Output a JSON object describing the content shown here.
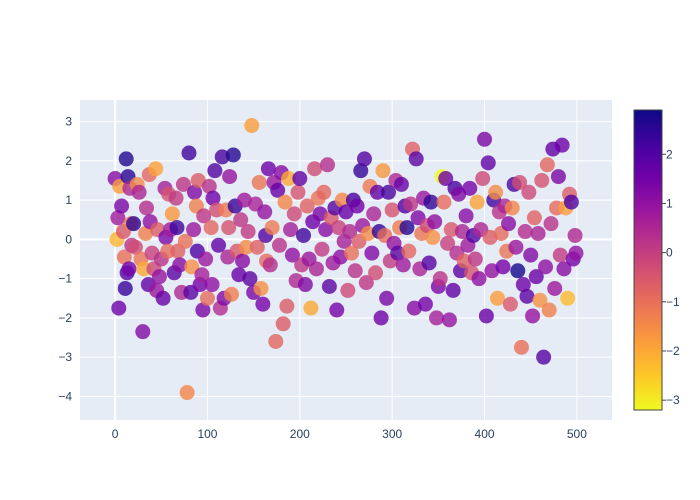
{
  "chart_data": {
    "type": "scatter",
    "title": "",
    "xlabel": "",
    "ylabel": "",
    "xlim": [
      -38,
      538
    ],
    "ylim": [
      -4.6,
      3.55
    ],
    "x_ticks": [
      0,
      100,
      200,
      300,
      400,
      500
    ],
    "y_ticks": [
      -4,
      -3,
      -2,
      -1,
      0,
      1,
      2,
      3
    ],
    "grid": true,
    "plot_background": "#e5ecf6",
    "colorscale": "Plasma (reversed)",
    "colorbar": {
      "range": [
        -3.2,
        2.9
      ],
      "ticks": [
        -3,
        -2,
        -1,
        0,
        1,
        2
      ],
      "placement": "right"
    },
    "marker_opacity": 0.8,
    "n_points": 500,
    "points": [
      {
        "x": 0,
        "y": 1.55,
        "c": 1.2
      },
      {
        "x": 2,
        "y": 0.0,
        "c": -2.2
      },
      {
        "x": 3,
        "y": 0.55,
        "c": 0.8
      },
      {
        "x": 4,
        "y": -1.75,
        "c": 1.6
      },
      {
        "x": 5,
        "y": 1.35,
        "c": -1.8
      },
      {
        "x": 7,
        "y": 0.85,
        "c": 1.4
      },
      {
        "x": 9,
        "y": 0.2,
        "c": -0.5
      },
      {
        "x": 10,
        "y": -0.45,
        "c": -1.0
      },
      {
        "x": 11,
        "y": -1.25,
        "c": 2.4
      },
      {
        "x": 12,
        "y": 2.05,
        "c": 2.7
      },
      {
        "x": 13,
        "y": -0.85,
        "c": 2.0
      },
      {
        "x": 14,
        "y": 1.6,
        "c": 2.6
      },
      {
        "x": 15,
        "y": -0.75,
        "c": 1.5
      },
      {
        "x": 16,
        "y": 1.3,
        "c": 0.5
      },
      {
        "x": 17,
        "y": 0.4,
        "c": -1.2
      },
      {
        "x": 18,
        "y": -0.15,
        "c": 0.2
      },
      {
        "x": 20,
        "y": 0.4,
        "c": 2.5
      },
      {
        "x": 22,
        "y": -0.2,
        "c": -0.3
      },
      {
        "x": 24,
        "y": 1.4,
        "c": -1.5
      },
      {
        "x": 26,
        "y": 1.2,
        "c": 0.6
      },
      {
        "x": 28,
        "y": -0.5,
        "c": -1.1
      },
      {
        "x": 30,
        "y": -2.35,
        "c": 1.3
      },
      {
        "x": 31,
        "y": -0.75,
        "c": -2.0
      },
      {
        "x": 33,
        "y": 0.15,
        "c": -1.3
      },
      {
        "x": 34,
        "y": 0.8,
        "c": 0.4
      },
      {
        "x": 36,
        "y": -1.15,
        "c": 1.8
      },
      {
        "x": 37,
        "y": 1.65,
        "c": -0.8
      },
      {
        "x": 38,
        "y": 0.45,
        "c": 1.1
      },
      {
        "x": 40,
        "y": -0.35,
        "c": 0.0
      },
      {
        "x": 42,
        "y": -0.75,
        "c": -0.2
      },
      {
        "x": 44,
        "y": 1.8,
        "c": -1.9
      },
      {
        "x": 45,
        "y": -1.3,
        "c": 0.9
      },
      {
        "x": 46,
        "y": 0.25,
        "c": -0.6
      },
      {
        "x": 48,
        "y": -0.95,
        "c": 1.0
      },
      {
        "x": 50,
        "y": -0.5,
        "c": 0.3
      },
      {
        "x": 52,
        "y": -1.5,
        "c": 1.7
      },
      {
        "x": 54,
        "y": 1.3,
        "c": 0.7
      },
      {
        "x": 55,
        "y": 0.05,
        "c": 1.4
      },
      {
        "x": 57,
        "y": -0.3,
        "c": -0.9
      },
      {
        "x": 58,
        "y": 1.15,
        "c": -0.4
      },
      {
        "x": 60,
        "y": 0.25,
        "c": 0.8
      },
      {
        "x": 62,
        "y": 0.65,
        "c": -1.7
      },
      {
        "x": 64,
        "y": -0.85,
        "c": 1.9
      },
      {
        "x": 66,
        "y": 1.05,
        "c": 0.1
      },
      {
        "x": 67,
        "y": 0.3,
        "c": 2.3
      },
      {
        "x": 68,
        "y": -0.3,
        "c": -0.7
      },
      {
        "x": 70,
        "y": -0.65,
        "c": 1.2
      },
      {
        "x": 72,
        "y": -1.35,
        "c": 0.5
      },
      {
        "x": 74,
        "y": 1.4,
        "c": 0.2
      },
      {
        "x": 76,
        "y": -0.05,
        "c": -1.0
      },
      {
        "x": 78,
        "y": -3.9,
        "c": -1.4
      },
      {
        "x": 80,
        "y": 2.2,
        "c": 2.3
      },
      {
        "x": 82,
        "y": -1.35,
        "c": 1.9
      },
      {
        "x": 83,
        "y": -0.7,
        "c": -1.6
      },
      {
        "x": 85,
        "y": 0.25,
        "c": 0.9
      },
      {
        "x": 86,
        "y": 1.2,
        "c": 1.3
      },
      {
        "x": 88,
        "y": 0.85,
        "c": -1.3
      },
      {
        "x": 89,
        "y": -0.3,
        "c": 2.1
      },
      {
        "x": 90,
        "y": 1.5,
        "c": -0.6
      },
      {
        "x": 92,
        "y": -1.15,
        "c": 1.5
      },
      {
        "x": 94,
        "y": -0.9,
        "c": 0.7
      },
      {
        "x": 95,
        "y": -1.8,
        "c": 1.4
      },
      {
        "x": 96,
        "y": 0.6,
        "c": 0.2
      },
      {
        "x": 98,
        "y": -0.5,
        "c": 0.9
      },
      {
        "x": 100,
        "y": -1.5,
        "c": -0.9
      },
      {
        "x": 102,
        "y": 1.35,
        "c": 0.3
      },
      {
        "x": 104,
        "y": 0.3,
        "c": -0.8
      },
      {
        "x": 105,
        "y": -1.15,
        "c": 1.1
      },
      {
        "x": 106,
        "y": 1.05,
        "c": 1.6
      },
      {
        "x": 108,
        "y": 1.75,
        "c": 2.0
      },
      {
        "x": 110,
        "y": 0.75,
        "c": -0.3
      },
      {
        "x": 112,
        "y": -0.15,
        "c": 1.8
      },
      {
        "x": 114,
        "y": -1.75,
        "c": 0.4
      },
      {
        "x": 116,
        "y": 2.1,
        "c": 2.2
      },
      {
        "x": 118,
        "y": -1.5,
        "c": 1.3
      },
      {
        "x": 120,
        "y": 0.75,
        "c": -1.2
      },
      {
        "x": 122,
        "y": -0.45,
        "c": 0.6
      },
      {
        "x": 123,
        "y": 0.3,
        "c": -0.4
      },
      {
        "x": 124,
        "y": 1.6,
        "c": 1.0
      },
      {
        "x": 126,
        "y": -1.4,
        "c": -1.3
      },
      {
        "x": 128,
        "y": 2.15,
        "c": 2.6
      },
      {
        "x": 130,
        "y": 0.85,
        "c": 2.4
      },
      {
        "x": 132,
        "y": -0.3,
        "c": -0.5
      },
      {
        "x": 134,
        "y": -0.9,
        "c": 1.7
      },
      {
        "x": 136,
        "y": 0.5,
        "c": 0.2
      },
      {
        "x": 138,
        "y": -0.55,
        "c": 1.2
      },
      {
        "x": 140,
        "y": 1.0,
        "c": 0.8
      },
      {
        "x": 142,
        "y": -0.2,
        "c": -1.5
      },
      {
        "x": 144,
        "y": 0.2,
        "c": 0.1
      },
      {
        "x": 146,
        "y": -1.0,
        "c": 1.9
      },
      {
        "x": 148,
        "y": 2.9,
        "c": -1.8
      },
      {
        "x": 150,
        "y": -1.35,
        "c": 1.4
      },
      {
        "x": 152,
        "y": 0.9,
        "c": 0.6
      },
      {
        "x": 154,
        "y": -0.2,
        "c": -0.7
      },
      {
        "x": 156,
        "y": 1.45,
        "c": -1.1
      },
      {
        "x": 158,
        "y": -1.25,
        "c": -1.6
      },
      {
        "x": 160,
        "y": -1.65,
        "c": 1.5
      },
      {
        "x": 162,
        "y": 0.7,
        "c": 1.0
      },
      {
        "x": 163,
        "y": 0.1,
        "c": 2.1
      },
      {
        "x": 164,
        "y": -0.55,
        "c": -0.9
      },
      {
        "x": 166,
        "y": 1.8,
        "c": 1.6
      },
      {
        "x": 168,
        "y": -0.65,
        "c": 0.4
      },
      {
        "x": 170,
        "y": 0.3,
        "c": -1.2
      },
      {
        "x": 172,
        "y": 1.45,
        "c": 0.9
      },
      {
        "x": 174,
        "y": -2.6,
        "c": -0.8
      },
      {
        "x": 176,
        "y": 1.25,
        "c": 1.7
      },
      {
        "x": 178,
        "y": -0.15,
        "c": 0.3
      },
      {
        "x": 180,
        "y": 1.7,
        "c": 1.2
      },
      {
        "x": 182,
        "y": -2.15,
        "c": -0.6
      },
      {
        "x": 184,
        "y": 0.95,
        "c": -1.4
      },
      {
        "x": 186,
        "y": -1.7,
        "c": -0.6
      },
      {
        "x": 188,
        "y": 1.55,
        "c": -2.0
      },
      {
        "x": 190,
        "y": 0.25,
        "c": 0.7
      },
      {
        "x": 192,
        "y": -0.4,
        "c": 1.1
      },
      {
        "x": 194,
        "y": 0.65,
        "c": -0.2
      },
      {
        "x": 196,
        "y": -1.05,
        "c": 0.5
      },
      {
        "x": 198,
        "y": 1.2,
        "c": -0.4
      },
      {
        "x": 200,
        "y": 1.55,
        "c": 1.8
      },
      {
        "x": 202,
        "y": -0.65,
        "c": 0.2
      },
      {
        "x": 204,
        "y": 0.1,
        "c": 2.3
      },
      {
        "x": 206,
        "y": -1.15,
        "c": 1.3
      },
      {
        "x": 208,
        "y": 0.85,
        "c": -0.7
      },
      {
        "x": 210,
        "y": -0.5,
        "c": 0.9
      },
      {
        "x": 212,
        "y": -1.75,
        "c": -2.0
      },
      {
        "x": 214,
        "y": 0.45,
        "c": 1.6
      },
      {
        "x": 216,
        "y": 1.8,
        "c": -0.3
      },
      {
        "x": 218,
        "y": -0.75,
        "c": 0.6
      },
      {
        "x": 220,
        "y": 1.05,
        "c": -1.1
      },
      {
        "x": 222,
        "y": 0.65,
        "c": 1.4
      },
      {
        "x": 224,
        "y": -0.25,
        "c": 0.1
      },
      {
        "x": 226,
        "y": 1.2,
        "c": -0.8
      },
      {
        "x": 228,
        "y": 0.25,
        "c": 1.2
      },
      {
        "x": 230,
        "y": 1.9,
        "c": 0.4
      },
      {
        "x": 232,
        "y": -1.2,
        "c": 1.9
      },
      {
        "x": 234,
        "y": 0.55,
        "c": -0.5
      },
      {
        "x": 236,
        "y": -0.6,
        "c": 0.8
      },
      {
        "x": 238,
        "y": 0.8,
        "c": 2.0
      },
      {
        "x": 240,
        "y": -1.8,
        "c": 1.5
      },
      {
        "x": 242,
        "y": 0.3,
        "c": 0.0
      },
      {
        "x": 244,
        "y": -0.45,
        "c": 1.1
      },
      {
        "x": 246,
        "y": 1.0,
        "c": -1.4
      },
      {
        "x": 248,
        "y": -0.05,
        "c": 0.7
      },
      {
        "x": 250,
        "y": 0.7,
        "c": 1.7
      },
      {
        "x": 252,
        "y": -1.3,
        "c": -0.2
      },
      {
        "x": 254,
        "y": 0.2,
        "c": 0.5
      },
      {
        "x": 256,
        "y": -0.35,
        "c": -1.0
      },
      {
        "x": 258,
        "y": 1.0,
        "c": 2.2
      },
      {
        "x": 260,
        "y": -0.8,
        "c": 0.3
      },
      {
        "x": 262,
        "y": 0.85,
        "c": 1.6
      },
      {
        "x": 264,
        "y": -0.05,
        "c": -0.6
      },
      {
        "x": 266,
        "y": 1.75,
        "c": 2.4
      },
      {
        "x": 268,
        "y": 0.35,
        "c": 0.9
      },
      {
        "x": 270,
        "y": 2.05,
        "c": 2.0
      },
      {
        "x": 272,
        "y": -1.1,
        "c": 0.2
      },
      {
        "x": 274,
        "y": 0.15,
        "c": -1.5
      },
      {
        "x": 276,
        "y": 1.35,
        "c": -1.2
      },
      {
        "x": 278,
        "y": -0.35,
        "c": 1.3
      },
      {
        "x": 280,
        "y": 0.65,
        "c": 0.6
      },
      {
        "x": 282,
        "y": -0.85,
        "c": -0.3
      },
      {
        "x": 284,
        "y": 1.2,
        "c": 1.8
      },
      {
        "x": 286,
        "y": 0.2,
        "c": 2.5
      },
      {
        "x": 288,
        "y": -2.0,
        "c": 1.6
      },
      {
        "x": 290,
        "y": 1.75,
        "c": -1.7
      },
      {
        "x": 292,
        "y": 0.1,
        "c": -0.9
      },
      {
        "x": 294,
        "y": -1.5,
        "c": 1.4
      },
      {
        "x": 296,
        "y": 1.2,
        "c": 2.2
      },
      {
        "x": 298,
        "y": -0.55,
        "c": 0.1
      },
      {
        "x": 300,
        "y": 0.75,
        "c": -0.4
      },
      {
        "x": 302,
        "y": -0.1,
        "c": 1.0
      },
      {
        "x": 304,
        "y": 1.5,
        "c": 0.5
      },
      {
        "x": 306,
        "y": -0.35,
        "c": 1.9
      },
      {
        "x": 308,
        "y": 0.3,
        "c": -1.3
      },
      {
        "x": 310,
        "y": 1.4,
        "c": 1.7
      },
      {
        "x": 312,
        "y": -0.65,
        "c": 0.8
      },
      {
        "x": 314,
        "y": 0.85,
        "c": 2.1
      },
      {
        "x": 316,
        "y": 0.3,
        "c": 2.6
      },
      {
        "x": 318,
        "y": -0.3,
        "c": -0.8
      },
      {
        "x": 320,
        "y": 0.9,
        "c": 0.2
      },
      {
        "x": 322,
        "y": 2.3,
        "c": -0.7
      },
      {
        "x": 324,
        "y": -1.75,
        "c": 1.2
      },
      {
        "x": 326,
        "y": 2.05,
        "c": 1.9
      },
      {
        "x": 328,
        "y": 0.55,
        "c": 1.3
      },
      {
        "x": 330,
        "y": -0.75,
        "c": 0.6
      },
      {
        "x": 332,
        "y": 0.15,
        "c": -1.1
      },
      {
        "x": 334,
        "y": 1.05,
        "c": 0.9
      },
      {
        "x": 336,
        "y": -1.65,
        "c": 1.5
      },
      {
        "x": 338,
        "y": 0.35,
        "c": -0.2
      },
      {
        "x": 340,
        "y": -0.6,
        "c": 2.0
      },
      {
        "x": 342,
        "y": 0.95,
        "c": 2.5
      },
      {
        "x": 344,
        "y": 0.05,
        "c": -1.6
      },
      {
        "x": 346,
        "y": 0.45,
        "c": 1.1
      },
      {
        "x": 348,
        "y": -2.0,
        "c": 0.7
      },
      {
        "x": 350,
        "y": -1.2,
        "c": 1.4
      },
      {
        "x": 352,
        "y": -1.0,
        "c": 0.3
      },
      {
        "x": 354,
        "y": 1.6,
        "c": -3.2
      },
      {
        "x": 356,
        "y": 0.95,
        "c": -0.9
      },
      {
        "x": 358,
        "y": 1.55,
        "c": 1.6
      },
      {
        "x": 360,
        "y": -0.1,
        "c": 0.0
      },
      {
        "x": 362,
        "y": -2.05,
        "c": 1.0
      },
      {
        "x": 364,
        "y": 0.25,
        "c": -0.5
      },
      {
        "x": 366,
        "y": -1.3,
        "c": 1.8
      },
      {
        "x": 368,
        "y": 1.3,
        "c": 2.2
      },
      {
        "x": 370,
        "y": -0.35,
        "c": 0.4
      },
      {
        "x": 372,
        "y": 1.15,
        "c": 1.3
      },
      {
        "x": 374,
        "y": -0.8,
        "c": 1.9
      },
      {
        "x": 376,
        "y": 0.2,
        "c": 0.6
      },
      {
        "x": 378,
        "y": -0.55,
        "c": -0.7
      },
      {
        "x": 380,
        "y": 0.6,
        "c": 1.2
      },
      {
        "x": 382,
        "y": -0.15,
        "c": 0.8
      },
      {
        "x": 384,
        "y": 1.3,
        "c": 1.5
      },
      {
        "x": 386,
        "y": -0.85,
        "c": -0.4
      },
      {
        "x": 388,
        "y": 0.1,
        "c": 2.0
      },
      {
        "x": 390,
        "y": -0.5,
        "c": 0.2
      },
      {
        "x": 392,
        "y": 0.95,
        "c": -1.9
      },
      {
        "x": 394,
        "y": -1.0,
        "c": 1.1
      },
      {
        "x": 396,
        "y": 0.25,
        "c": 0.5
      },
      {
        "x": 398,
        "y": 1.55,
        "c": -0.2
      },
      {
        "x": 400,
        "y": 2.55,
        "c": 1.4
      },
      {
        "x": 402,
        "y": -1.95,
        "c": 1.7
      },
      {
        "x": 404,
        "y": 1.95,
        "c": 1.8
      },
      {
        "x": 406,
        "y": 0.05,
        "c": -0.6
      },
      {
        "x": 408,
        "y": -0.8,
        "c": 1.0
      },
      {
        "x": 410,
        "y": 1.0,
        "c": 2.3
      },
      {
        "x": 412,
        "y": 1.2,
        "c": -1.5
      },
      {
        "x": 414,
        "y": -1.5,
        "c": -1.8
      },
      {
        "x": 416,
        "y": 0.7,
        "c": 0.3
      },
      {
        "x": 418,
        "y": 0.15,
        "c": -0.9
      },
      {
        "x": 420,
        "y": -0.7,
        "c": 1.5
      },
      {
        "x": 422,
        "y": 0.85,
        "c": 0.6
      },
      {
        "x": 424,
        "y": -0.3,
        "c": -1.1
      },
      {
        "x": 426,
        "y": 0.4,
        "c": 1.2
      },
      {
        "x": 428,
        "y": -1.65,
        "c": -0.5
      },
      {
        "x": 430,
        "y": 0.8,
        "c": -1.4
      },
      {
        "x": 432,
        "y": 1.4,
        "c": 2.1
      },
      {
        "x": 434,
        "y": -0.2,
        "c": 0.9
      },
      {
        "x": 436,
        "y": -0.8,
        "c": 2.8
      },
      {
        "x": 438,
        "y": 1.45,
        "c": -0.3
      },
      {
        "x": 440,
        "y": -2.75,
        "c": -1.0
      },
      {
        "x": 442,
        "y": -1.15,
        "c": 1.6
      },
      {
        "x": 444,
        "y": 0.2,
        "c": 0.4
      },
      {
        "x": 446,
        "y": -1.45,
        "c": 1.9
      },
      {
        "x": 448,
        "y": 1.2,
        "c": -0.2
      },
      {
        "x": 450,
        "y": -0.4,
        "c": 1.3
      },
      {
        "x": 452,
        "y": -1.95,
        "c": 1.0
      },
      {
        "x": 454,
        "y": 0.55,
        "c": -0.7
      },
      {
        "x": 456,
        "y": -0.95,
        "c": 1.7
      },
      {
        "x": 458,
        "y": 0.15,
        "c": 0.6
      },
      {
        "x": 460,
        "y": -1.55,
        "c": -1.6
      },
      {
        "x": 462,
        "y": 1.5,
        "c": -0.4
      },
      {
        "x": 464,
        "y": -3.0,
        "c": 2.0
      },
      {
        "x": 466,
        "y": -0.7,
        "c": 1.1
      },
      {
        "x": 468,
        "y": 1.9,
        "c": -0.8
      },
      {
        "x": 470,
        "y": -1.8,
        "c": -1.3
      },
      {
        "x": 472,
        "y": 0.4,
        "c": 0.3
      },
      {
        "x": 474,
        "y": 2.3,
        "c": 1.8
      },
      {
        "x": 476,
        "y": -1.25,
        "c": 0.9
      },
      {
        "x": 478,
        "y": 0.8,
        "c": -0.9
      },
      {
        "x": 480,
        "y": 1.6,
        "c": 1.4
      },
      {
        "x": 482,
        "y": -0.4,
        "c": 0.1
      },
      {
        "x": 484,
        "y": 2.4,
        "c": 1.6
      },
      {
        "x": 486,
        "y": -0.75,
        "c": 1.2
      },
      {
        "x": 488,
        "y": 0.8,
        "c": -1.8
      },
      {
        "x": 490,
        "y": -1.5,
        "c": -2.3
      },
      {
        "x": 492,
        "y": 1.15,
        "c": -0.6
      },
      {
        "x": 494,
        "y": 0.95,
        "c": 2.1
      },
      {
        "x": 496,
        "y": -0.5,
        "c": 1.5
      },
      {
        "x": 498,
        "y": 0.1,
        "c": 0.5
      },
      {
        "x": 499,
        "y": -0.35,
        "c": 1.0
      }
    ]
  }
}
